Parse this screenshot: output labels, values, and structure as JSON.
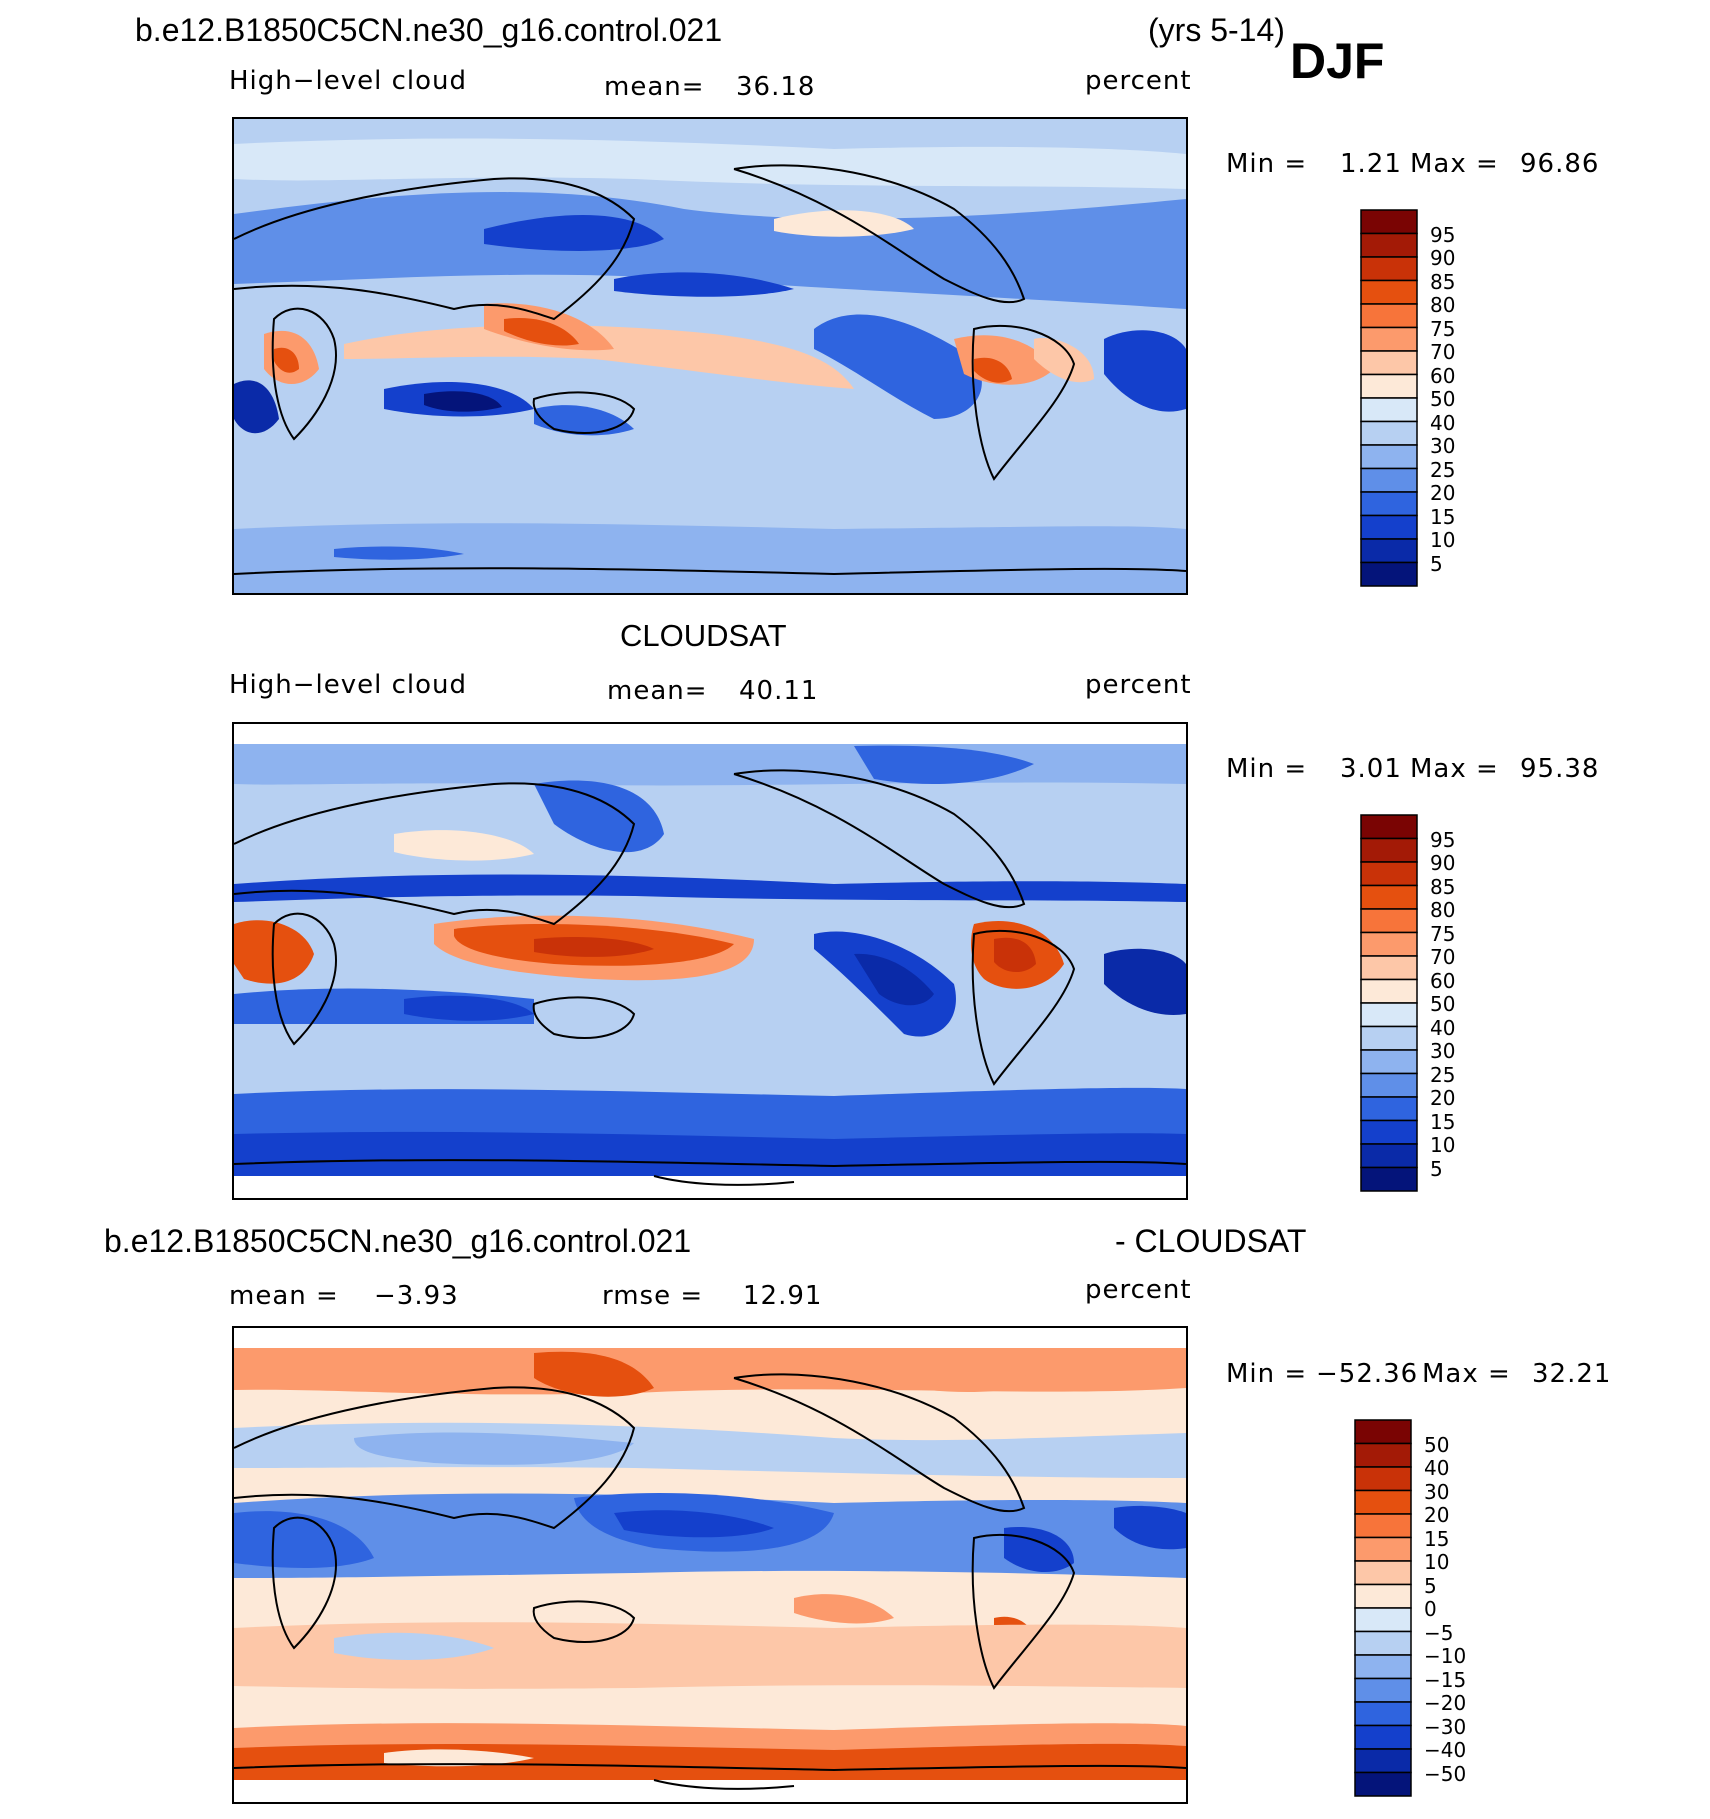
{
  "header": {
    "case_name": "b.e12.B1850C5CN.ne30_g16.control.021",
    "years": "(yrs 5-14)",
    "season": "DJF"
  },
  "panels": [
    {
      "id": "model",
      "variable": "High−level cloud",
      "stat_label": "mean=",
      "stat_value": "36.18",
      "units": "percent",
      "min_label": "Min =",
      "min_value": "1.21",
      "max_label": "Max =",
      "max_value": "96.86",
      "colorbar_labels": [
        "95",
        "90",
        "85",
        "80",
        "75",
        "70",
        "60",
        "50",
        "40",
        "30",
        "25",
        "20",
        "15",
        "10",
        "5"
      ]
    },
    {
      "id": "obs",
      "title": "CLOUDSAT",
      "variable": "High−level cloud",
      "stat_label": "mean=",
      "stat_value": "40.11",
      "units": "percent",
      "min_label": "Min =",
      "min_value": "3.01",
      "max_label": "Max =",
      "max_value": "95.38",
      "colorbar_labels": [
        "95",
        "90",
        "85",
        "80",
        "75",
        "70",
        "60",
        "50",
        "40",
        "30",
        "25",
        "20",
        "15",
        "10",
        "5"
      ]
    },
    {
      "id": "diff",
      "title_left": "b.e12.B1850C5CN.ne30_g16.control.021",
      "title_right": "- CLOUDSAT",
      "mean_label": "mean =",
      "mean_value": "−3.93",
      "rmse_label": "rmse =",
      "rmse_value": "12.91",
      "units": "percent",
      "min_label": "Min =",
      "min_value": "−52.36",
      "max_label": "Max =",
      "max_value": "32.21",
      "colorbar_labels": [
        "50",
        "40",
        "30",
        "20",
        "15",
        "10",
        "5",
        "0",
        "−5",
        "−10",
        "−15",
        "−20",
        "−30",
        "−40",
        "−50"
      ]
    }
  ],
  "colors": {
    "abs_scale": [
      "#7a0403",
      "#a31a06",
      "#c93208",
      "#e5500f",
      "#f7743a",
      "#fc9a6c",
      "#fdc7a8",
      "#fde9d8",
      "#d8e8f8",
      "#b7d0f2",
      "#8eb3ef",
      "#5f8fe8",
      "#2f64df",
      "#1440cc",
      "#0a2aa8",
      "#04147a"
    ],
    "diff_scale": [
      "#7a0403",
      "#a31a06",
      "#c93208",
      "#e5500f",
      "#f7743a",
      "#fc9a6c",
      "#fdc7a8",
      "#fde9d8",
      "#d8e8f8",
      "#b7d0f2",
      "#8eb3ef",
      "#5f8fe8",
      "#2f64df",
      "#1440cc",
      "#0a2aa8",
      "#04147a"
    ]
  }
}
